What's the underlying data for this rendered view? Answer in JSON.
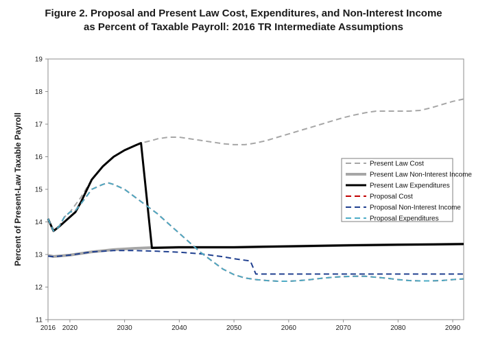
{
  "chart_data": {
    "type": "line",
    "title_line1": "Figure 2.  Proposal and Present Law Cost, Expenditures, and Non-Interest Income",
    "title_line2": "as Percent of Taxable Payroll: 2016 TR Intermediate Assumptions",
    "ylabel": "Percent of Present-Law Taxable Payroll",
    "xlabel": "",
    "xlim": [
      2016,
      2092
    ],
    "ylim": [
      11,
      19
    ],
    "x_ticks": [
      2016,
      2020,
      2030,
      2040,
      2050,
      2060,
      2070,
      2080,
      2090
    ],
    "y_ticks": [
      11,
      12,
      13,
      14,
      15,
      16,
      17,
      18,
      19
    ],
    "grid": false,
    "legend_position": "right",
    "series": [
      {
        "name": "Present Law Cost",
        "color": "#a6a6a6",
        "dash": "dashed",
        "width": 2,
        "points": [
          [
            2016,
            14.1
          ],
          [
            2017,
            13.75
          ],
          [
            2018,
            13.85
          ],
          [
            2019,
            14.15
          ],
          [
            2020,
            14.3
          ],
          [
            2022,
            14.75
          ],
          [
            2024,
            15.3
          ],
          [
            2026,
            15.7
          ],
          [
            2028,
            16.0
          ],
          [
            2030,
            16.2
          ],
          [
            2032,
            16.35
          ],
          [
            2033,
            16.42
          ],
          [
            2035,
            16.5
          ],
          [
            2036,
            16.55
          ],
          [
            2038,
            16.6
          ],
          [
            2040,
            16.6
          ],
          [
            2042,
            16.55
          ],
          [
            2044,
            16.5
          ],
          [
            2046,
            16.45
          ],
          [
            2048,
            16.4
          ],
          [
            2050,
            16.37
          ],
          [
            2052,
            16.37
          ],
          [
            2054,
            16.42
          ],
          [
            2056,
            16.5
          ],
          [
            2058,
            16.6
          ],
          [
            2060,
            16.7
          ],
          [
            2062,
            16.8
          ],
          [
            2064,
            16.9
          ],
          [
            2066,
            17.0
          ],
          [
            2068,
            17.1
          ],
          [
            2070,
            17.2
          ],
          [
            2072,
            17.28
          ],
          [
            2074,
            17.35
          ],
          [
            2076,
            17.4
          ],
          [
            2078,
            17.4
          ],
          [
            2080,
            17.4
          ],
          [
            2082,
            17.4
          ],
          [
            2084,
            17.42
          ],
          [
            2086,
            17.5
          ],
          [
            2088,
            17.6
          ],
          [
            2090,
            17.7
          ],
          [
            2092,
            17.77
          ]
        ]
      },
      {
        "name": "Present Law Non-Interest Income",
        "color": "#a6a6a6",
        "dash": "solid",
        "width": 4,
        "points": [
          [
            2016,
            12.97
          ],
          [
            2017,
            12.94
          ],
          [
            2020,
            12.98
          ],
          [
            2024,
            13.08
          ],
          [
            2028,
            13.15
          ],
          [
            2032,
            13.19
          ],
          [
            2035,
            13.21
          ],
          [
            2040,
            13.22
          ],
          [
            2050,
            13.22
          ],
          [
            2060,
            13.25
          ],
          [
            2070,
            13.28
          ],
          [
            2080,
            13.3
          ],
          [
            2092,
            13.32
          ]
        ]
      },
      {
        "name": "Present Law Expenditures",
        "color": "#000000",
        "dash": "solid",
        "width": 3,
        "points": [
          [
            2016,
            14.1
          ],
          [
            2017,
            13.72
          ],
          [
            2018,
            13.85
          ],
          [
            2019,
            14.0
          ],
          [
            2020,
            14.15
          ],
          [
            2021,
            14.3
          ],
          [
            2022,
            14.6
          ],
          [
            2024,
            15.3
          ],
          [
            2026,
            15.7
          ],
          [
            2028,
            16.0
          ],
          [
            2030,
            16.2
          ],
          [
            2032,
            16.35
          ],
          [
            2033,
            16.42
          ],
          [
            2035,
            13.2
          ],
          [
            2040,
            13.22
          ],
          [
            2050,
            13.22
          ],
          [
            2060,
            13.25
          ],
          [
            2070,
            13.28
          ],
          [
            2080,
            13.3
          ],
          [
            2092,
            13.32
          ]
        ]
      },
      {
        "name": "Proposal Cost",
        "color": "#c00000",
        "dash": "dashed",
        "width": 2,
        "points": [
          [
            2016,
            14.1
          ],
          [
            2017,
            13.72
          ],
          [
            2018,
            13.85
          ],
          [
            2019,
            14.15
          ],
          [
            2020,
            14.3
          ],
          [
            2021,
            14.35
          ],
          [
            2022,
            14.55
          ],
          [
            2024,
            15.0
          ],
          [
            2026,
            15.15
          ],
          [
            2027,
            15.2
          ],
          [
            2028,
            15.15
          ],
          [
            2030,
            15.0
          ],
          [
            2032,
            14.75
          ],
          [
            2034,
            14.5
          ],
          [
            2036,
            14.25
          ],
          [
            2038,
            13.95
          ],
          [
            2040,
            13.65
          ],
          [
            2042,
            13.35
          ],
          [
            2044,
            13.05
          ],
          [
            2046,
            12.8
          ],
          [
            2048,
            12.55
          ],
          [
            2050,
            12.38
          ],
          [
            2052,
            12.28
          ],
          [
            2054,
            12.23
          ],
          [
            2056,
            12.2
          ],
          [
            2058,
            12.18
          ],
          [
            2060,
            12.18
          ],
          [
            2062,
            12.2
          ],
          [
            2064,
            12.23
          ],
          [
            2066,
            12.27
          ],
          [
            2068,
            12.3
          ],
          [
            2070,
            12.32
          ],
          [
            2072,
            12.33
          ],
          [
            2074,
            12.33
          ],
          [
            2076,
            12.3
          ],
          [
            2078,
            12.27
          ],
          [
            2080,
            12.23
          ],
          [
            2082,
            12.2
          ],
          [
            2084,
            12.19
          ],
          [
            2086,
            12.19
          ],
          [
            2088,
            12.2
          ],
          [
            2090,
            12.23
          ],
          [
            2092,
            12.25
          ]
        ]
      },
      {
        "name": "Proposal Non-Interest Income",
        "color": "#1f3f8f",
        "dash": "dashed",
        "width": 2,
        "points": [
          [
            2016,
            12.95
          ],
          [
            2017,
            12.93
          ],
          [
            2020,
            12.98
          ],
          [
            2024,
            13.08
          ],
          [
            2028,
            13.12
          ],
          [
            2032,
            13.12
          ],
          [
            2036,
            13.1
          ],
          [
            2040,
            13.07
          ],
          [
            2044,
            13.02
          ],
          [
            2048,
            12.93
          ],
          [
            2050,
            12.87
          ],
          [
            2053,
            12.8
          ],
          [
            2054,
            12.4
          ],
          [
            2060,
            12.4
          ],
          [
            2070,
            12.4
          ],
          [
            2080,
            12.4
          ],
          [
            2092,
            12.4
          ]
        ]
      },
      {
        "name": "Proposal Expenditures",
        "color": "#4bacc6",
        "dash": "dashed",
        "width": 2,
        "points": [
          [
            2016,
            14.1
          ],
          [
            2017,
            13.72
          ],
          [
            2018,
            13.85
          ],
          [
            2019,
            14.15
          ],
          [
            2020,
            14.3
          ],
          [
            2021,
            14.35
          ],
          [
            2022,
            14.55
          ],
          [
            2024,
            15.0
          ],
          [
            2026,
            15.15
          ],
          [
            2027,
            15.2
          ],
          [
            2028,
            15.15
          ],
          [
            2030,
            15.0
          ],
          [
            2032,
            14.75
          ],
          [
            2034,
            14.5
          ],
          [
            2036,
            14.25
          ],
          [
            2038,
            13.95
          ],
          [
            2040,
            13.65
          ],
          [
            2042,
            13.35
          ],
          [
            2044,
            13.05
          ],
          [
            2046,
            12.8
          ],
          [
            2048,
            12.55
          ],
          [
            2050,
            12.38
          ],
          [
            2052,
            12.28
          ],
          [
            2054,
            12.23
          ],
          [
            2056,
            12.2
          ],
          [
            2058,
            12.18
          ],
          [
            2060,
            12.18
          ],
          [
            2062,
            12.2
          ],
          [
            2064,
            12.23
          ],
          [
            2066,
            12.27
          ],
          [
            2068,
            12.3
          ],
          [
            2070,
            12.32
          ],
          [
            2072,
            12.33
          ],
          [
            2074,
            12.33
          ],
          [
            2076,
            12.3
          ],
          [
            2078,
            12.27
          ],
          [
            2080,
            12.23
          ],
          [
            2082,
            12.2
          ],
          [
            2084,
            12.19
          ],
          [
            2086,
            12.19
          ],
          [
            2088,
            12.2
          ],
          [
            2090,
            12.23
          ],
          [
            2092,
            12.25
          ]
        ]
      }
    ]
  }
}
